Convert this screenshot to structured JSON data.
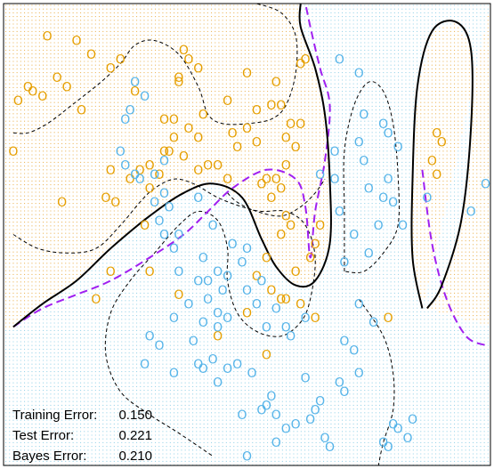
{
  "chart_data": {
    "type": "scatter",
    "title": "",
    "xlabel": "",
    "ylabel": "",
    "xlim": [
      0,
      1
    ],
    "ylim": [
      0,
      1
    ],
    "classes": [
      {
        "label": "O",
        "color": "#E69F00"
      },
      {
        "label": "O",
        "color": "#56B4E9"
      }
    ],
    "region_colors": {
      "orange": "#E6A430",
      "blue": "#7EC8E3"
    },
    "boundary_colors": {
      "fitted_boundary": "#000000",
      "bayes_boundary": "#A020F0",
      "contours": "#000000"
    },
    "orange_points": [
      [
        0.05,
        0.82
      ],
      [
        0.09,
        0.93
      ],
      [
        0.15,
        0.92
      ],
      [
        0.18,
        0.89
      ],
      [
        0.22,
        0.86
      ],
      [
        0.24,
        0.88
      ],
      [
        0.27,
        0.81
      ],
      [
        0.11,
        0.84
      ],
      [
        0.06,
        0.81
      ],
      [
        0.08,
        0.8
      ],
      [
        0.13,
        0.82
      ],
      [
        0.03,
        0.79
      ],
      [
        0.02,
        0.68
      ],
      [
        0.16,
        0.77
      ],
      [
        0.12,
        0.57
      ],
      [
        0.21,
        0.58
      ],
      [
        0.23,
        0.57
      ],
      [
        0.22,
        0.64
      ],
      [
        0.26,
        0.62
      ],
      [
        0.28,
        0.64
      ],
      [
        0.3,
        0.65
      ],
      [
        0.3,
        0.6
      ],
      [
        0.33,
        0.68
      ],
      [
        0.32,
        0.63
      ],
      [
        0.35,
        0.71
      ],
      [
        0.35,
        0.75
      ],
      [
        0.36,
        0.83
      ],
      [
        0.37,
        0.9
      ],
      [
        0.36,
        0.84
      ],
      [
        0.38,
        0.88
      ],
      [
        0.38,
        0.73
      ],
      [
        0.4,
        0.71
      ],
      [
        0.4,
        0.64
      ],
      [
        0.42,
        0.65
      ],
      [
        0.44,
        0.65
      ],
      [
        0.46,
        0.62
      ],
      [
        0.41,
        0.76
      ],
      [
        0.47,
        0.72
      ],
      [
        0.48,
        0.69
      ],
      [
        0.5,
        0.73
      ],
      [
        0.52,
        0.7
      ],
      [
        0.53,
        0.61
      ],
      [
        0.55,
        0.58
      ],
      [
        0.54,
        0.62
      ],
      [
        0.56,
        0.62
      ],
      [
        0.57,
        0.6
      ],
      [
        0.58,
        0.65
      ],
      [
        0.58,
        0.71
      ],
      [
        0.59,
        0.74
      ],
      [
        0.55,
        0.78
      ],
      [
        0.56,
        0.83
      ],
      [
        0.57,
        0.78
      ],
      [
        0.6,
        0.69
      ],
      [
        0.61,
        0.74
      ],
      [
        0.58,
        0.54
      ],
      [
        0.59,
        0.52
      ],
      [
        0.57,
        0.5
      ],
      [
        0.54,
        0.45
      ],
      [
        0.52,
        0.41
      ],
      [
        0.55,
        0.38
      ],
      [
        0.58,
        0.36
      ],
      [
        0.61,
        0.35
      ],
      [
        0.64,
        0.32
      ],
      [
        0.6,
        0.42
      ],
      [
        0.63,
        0.45
      ],
      [
        0.64,
        0.48
      ],
      [
        0.65,
        0.52
      ],
      [
        0.33,
        0.75
      ],
      [
        0.22,
        0.42
      ],
      [
        0.19,
        0.36
      ],
      [
        0.29,
        0.52
      ],
      [
        0.3,
        0.42
      ],
      [
        0.36,
        0.37
      ],
      [
        0.44,
        0.28
      ],
      [
        0.5,
        0.33
      ],
      [
        0.54,
        0.24
      ],
      [
        0.57,
        0.36
      ],
      [
        0.61,
        0.87
      ],
      [
        0.62,
        0.88
      ],
      [
        0.52,
        0.77
      ],
      [
        0.5,
        0.85
      ],
      [
        0.46,
        0.79
      ],
      [
        0.4,
        0.86
      ],
      [
        0.79,
        0.32
      ],
      [
        0.88,
        0.66
      ],
      [
        0.89,
        0.63
      ],
      [
        0.9,
        0.7
      ],
      [
        0.89,
        0.72
      ],
      [
        0.34,
        0.68
      ],
      [
        0.37,
        0.67
      ]
    ],
    "blue_points": [
      [
        0.25,
        0.75
      ],
      [
        0.26,
        0.77
      ],
      [
        0.24,
        0.68
      ],
      [
        0.25,
        0.65
      ],
      [
        0.27,
        0.63
      ],
      [
        0.28,
        0.62
      ],
      [
        0.31,
        0.63
      ],
      [
        0.33,
        0.66
      ],
      [
        0.33,
        0.59
      ],
      [
        0.31,
        0.57
      ],
      [
        0.34,
        0.56
      ],
      [
        0.32,
        0.53
      ],
      [
        0.33,
        0.5
      ],
      [
        0.36,
        0.5
      ],
      [
        0.35,
        0.47
      ],
      [
        0.4,
        0.58
      ],
      [
        0.43,
        0.52
      ],
      [
        0.41,
        0.45
      ],
      [
        0.44,
        0.42
      ],
      [
        0.42,
        0.4
      ],
      [
        0.45,
        0.38
      ],
      [
        0.47,
        0.48
      ],
      [
        0.49,
        0.44
      ],
      [
        0.5,
        0.47
      ],
      [
        0.53,
        0.4
      ],
      [
        0.52,
        0.35
      ],
      [
        0.56,
        0.34
      ],
      [
        0.58,
        0.3
      ],
      [
        0.59,
        0.28
      ],
      [
        0.54,
        0.3
      ],
      [
        0.46,
        0.41
      ],
      [
        0.42,
        0.36
      ],
      [
        0.44,
        0.33
      ],
      [
        0.46,
        0.32
      ],
      [
        0.44,
        0.3
      ],
      [
        0.41,
        0.31
      ],
      [
        0.39,
        0.27
      ],
      [
        0.4,
        0.22
      ],
      [
        0.43,
        0.23
      ],
      [
        0.38,
        0.35
      ],
      [
        0.36,
        0.42
      ],
      [
        0.35,
        0.32
      ],
      [
        0.32,
        0.26
      ],
      [
        0.29,
        0.22
      ],
      [
        0.3,
        0.28
      ],
      [
        0.35,
        0.2
      ],
      [
        0.41,
        0.21
      ],
      [
        0.44,
        0.18
      ],
      [
        0.46,
        0.21
      ],
      [
        0.48,
        0.22
      ],
      [
        0.49,
        0.11
      ],
      [
        0.51,
        0.2
      ],
      [
        0.53,
        0.12
      ],
      [
        0.54,
        0.13
      ],
      [
        0.55,
        0.15
      ],
      [
        0.56,
        0.11
      ],
      [
        0.58,
        0.08
      ],
      [
        0.6,
        0.09
      ],
      [
        0.63,
        0.1
      ],
      [
        0.64,
        0.12
      ],
      [
        0.65,
        0.14
      ],
      [
        0.62,
        0.19
      ],
      [
        0.66,
        0.06
      ],
      [
        0.69,
        0.18
      ],
      [
        0.7,
        0.16
      ],
      [
        0.73,
        0.2
      ],
      [
        0.72,
        0.25
      ],
      [
        0.7,
        0.27
      ],
      [
        0.73,
        0.35
      ],
      [
        0.76,
        0.31
      ],
      [
        0.8,
        0.09
      ],
      [
        0.78,
        0.05
      ],
      [
        0.79,
        0.04
      ],
      [
        0.81,
        0.08
      ],
      [
        0.83,
        0.06
      ],
      [
        0.84,
        0.1
      ],
      [
        0.67,
        0.04
      ],
      [
        0.56,
        0.05
      ],
      [
        0.5,
        0.02
      ],
      [
        0.62,
        0.32
      ],
      [
        0.69,
        0.55
      ],
      [
        0.72,
        0.5
      ],
      [
        0.73,
        0.7
      ],
      [
        0.74,
        0.66
      ],
      [
        0.78,
        0.58
      ],
      [
        0.77,
        0.52
      ],
      [
        0.79,
        0.62
      ],
      [
        0.8,
        0.57
      ],
      [
        0.79,
        0.72
      ],
      [
        0.81,
        0.69
      ],
      [
        0.78,
        0.74
      ],
      [
        0.74,
        0.76
      ],
      [
        0.73,
        0.85
      ],
      [
        0.69,
        0.88
      ],
      [
        0.68,
        0.62
      ],
      [
        0.65,
        0.63
      ],
      [
        0.68,
        0.68
      ],
      [
        0.75,
        0.46
      ],
      [
        0.87,
        0.58
      ],
      [
        0.96,
        0.55
      ],
      [
        0.99,
        0.61
      ],
      [
        0.27,
        0.83
      ],
      [
        0.29,
        0.8
      ],
      [
        0.4,
        0.4
      ],
      [
        0.5,
        0.38
      ],
      [
        0.75,
        0.6
      ],
      [
        0.82,
        0.52
      ],
      [
        0.7,
        0.44
      ]
    ],
    "fitted_boundary": [
      [
        [
          0.02,
          0.3
        ],
        [
          0.08,
          0.35
        ],
        [
          0.15,
          0.4
        ],
        [
          0.22,
          0.47
        ],
        [
          0.3,
          0.54
        ],
        [
          0.37,
          0.59
        ],
        [
          0.43,
          0.61
        ],
        [
          0.49,
          0.58
        ],
        [
          0.53,
          0.49
        ],
        [
          0.56,
          0.43
        ],
        [
          0.6,
          0.39
        ],
        [
          0.64,
          0.4
        ],
        [
          0.67,
          0.48
        ],
        [
          0.67,
          0.62
        ],
        [
          0.66,
          0.76
        ],
        [
          0.64,
          0.86
        ],
        [
          0.61,
          0.95
        ],
        [
          0.61,
          1.0
        ]
      ],
      [
        [
          0.86,
          0.34
        ],
        [
          0.84,
          0.45
        ],
        [
          0.84,
          0.62
        ],
        [
          0.85,
          0.82
        ],
        [
          0.88,
          0.94
        ],
        [
          0.93,
          0.96
        ],
        [
          0.96,
          0.9
        ],
        [
          0.96,
          0.73
        ],
        [
          0.94,
          0.53
        ],
        [
          0.9,
          0.39
        ],
        [
          0.87,
          0.34
        ]
      ]
    ],
    "bayes_boundary": [
      [
        [
          0.02,
          0.3
        ],
        [
          0.08,
          0.34
        ],
        [
          0.15,
          0.37
        ],
        [
          0.22,
          0.4
        ],
        [
          0.3,
          0.45
        ],
        [
          0.37,
          0.5
        ],
        [
          0.42,
          0.55
        ],
        [
          0.47,
          0.6
        ],
        [
          0.54,
          0.64
        ],
        [
          0.6,
          0.62
        ],
        [
          0.62,
          0.56
        ],
        [
          0.63,
          0.45
        ],
        [
          0.64,
          0.55
        ],
        [
          0.66,
          0.66
        ],
        [
          0.67,
          0.78
        ],
        [
          0.65,
          0.86
        ],
        [
          0.63,
          0.95
        ],
        [
          0.62,
          1.0
        ]
      ],
      [
        [
          0.86,
          0.64
        ],
        [
          0.88,
          0.48
        ],
        [
          0.91,
          0.36
        ],
        [
          0.95,
          0.28
        ],
        [
          0.99,
          0.26
        ]
      ]
    ],
    "contours": [
      [
        [
          0.02,
          0.5
        ],
        [
          0.07,
          0.47
        ],
        [
          0.13,
          0.46
        ],
        [
          0.19,
          0.47
        ],
        [
          0.24,
          0.52
        ],
        [
          0.28,
          0.57
        ],
        [
          0.31,
          0.6
        ],
        [
          0.35,
          0.62
        ],
        [
          0.39,
          0.61
        ],
        [
          0.44,
          0.58
        ],
        [
          0.49,
          0.56
        ],
        [
          0.53,
          0.55
        ],
        [
          0.58,
          0.55
        ],
        [
          0.62,
          0.52
        ],
        [
          0.64,
          0.45
        ],
        [
          0.63,
          0.36
        ],
        [
          0.61,
          0.31
        ],
        [
          0.57,
          0.28
        ],
        [
          0.52,
          0.29
        ],
        [
          0.48,
          0.33
        ],
        [
          0.46,
          0.4
        ],
        [
          0.46,
          0.47
        ],
        [
          0.44,
          0.53
        ],
        [
          0.4,
          0.55
        ],
        [
          0.36,
          0.52
        ],
        [
          0.31,
          0.46
        ],
        [
          0.26,
          0.4
        ],
        [
          0.22,
          0.33
        ],
        [
          0.21,
          0.24
        ],
        [
          0.24,
          0.16
        ],
        [
          0.3,
          0.11
        ],
        [
          0.36,
          0.07
        ],
        [
          0.43,
          0.02
        ]
      ],
      [
        [
          0.02,
          0.72
        ],
        [
          0.05,
          0.72
        ],
        [
          0.09,
          0.74
        ],
        [
          0.14,
          0.78
        ],
        [
          0.2,
          0.83
        ],
        [
          0.24,
          0.87
        ],
        [
          0.27,
          0.91
        ],
        [
          0.31,
          0.92
        ],
        [
          0.36,
          0.89
        ],
        [
          0.4,
          0.82
        ],
        [
          0.42,
          0.76
        ],
        [
          0.45,
          0.74
        ],
        [
          0.5,
          0.74
        ],
        [
          0.55,
          0.75
        ],
        [
          0.58,
          0.78
        ],
        [
          0.6,
          0.85
        ],
        [
          0.6,
          0.93
        ],
        [
          0.57,
          0.98
        ],
        [
          0.52,
          1.0
        ]
      ],
      [
        [
          0.46,
          0.59
        ],
        [
          0.48,
          0.57
        ],
        [
          0.52,
          0.55
        ],
        [
          0.57,
          0.54
        ],
        [
          0.61,
          0.56
        ],
        [
          0.64,
          0.59
        ],
        [
          0.66,
          0.62
        ]
      ],
      [
        [
          0.7,
          0.42
        ],
        [
          0.7,
          0.55
        ],
        [
          0.7,
          0.68
        ],
        [
          0.72,
          0.78
        ],
        [
          0.75,
          0.83
        ],
        [
          0.78,
          0.81
        ],
        [
          0.8,
          0.74
        ],
        [
          0.81,
          0.63
        ],
        [
          0.81,
          0.52
        ],
        [
          0.78,
          0.46
        ],
        [
          0.74,
          0.42
        ],
        [
          0.7,
          0.42
        ]
      ],
      [
        [
          0.73,
          0.36
        ],
        [
          0.78,
          0.28
        ],
        [
          0.8,
          0.2
        ],
        [
          0.8,
          0.12
        ],
        [
          0.78,
          0.05
        ],
        [
          0.77,
          0.0
        ]
      ]
    ],
    "stats": [
      {
        "label": "Training Error:",
        "value": "0.150"
      },
      {
        "label": "Test Error:",
        "value": "0.221"
      },
      {
        "label": "Bayes Error:",
        "value": "0.210"
      }
    ]
  }
}
